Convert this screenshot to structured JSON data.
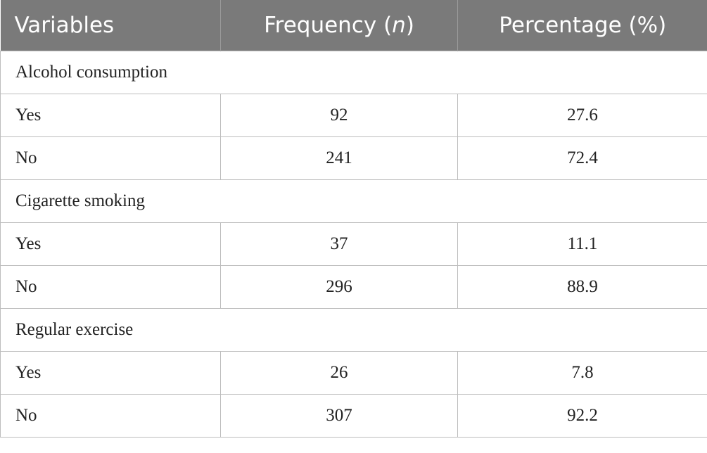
{
  "header": {
    "variables": "Variables",
    "frequency_prefix": "Frequency (",
    "frequency_italic": "n",
    "frequency_suffix": ")",
    "percentage": "Percentage (%)"
  },
  "groups": [
    {
      "label": "Alcohol consumption",
      "rows": [
        {
          "label": "Yes",
          "frequency": "92",
          "percentage": "27.6"
        },
        {
          "label": "No",
          "frequency": "241",
          "percentage": "72.4"
        }
      ]
    },
    {
      "label": "Cigarette smoking",
      "rows": [
        {
          "label": "Yes",
          "frequency": "37",
          "percentage": "11.1"
        },
        {
          "label": "No",
          "frequency": "296",
          "percentage": "88.9"
        }
      ]
    },
    {
      "label": "Regular exercise",
      "rows": [
        {
          "label": "Yes",
          "frequency": "26",
          "percentage": "7.8"
        },
        {
          "label": "No",
          "frequency": "307",
          "percentage": "92.2"
        }
      ]
    }
  ],
  "colors": {
    "header_bg": "#7a7a7a",
    "header_text": "#ffffff",
    "grid_line": "#bdbdbd",
    "body_text": "#222222"
  }
}
